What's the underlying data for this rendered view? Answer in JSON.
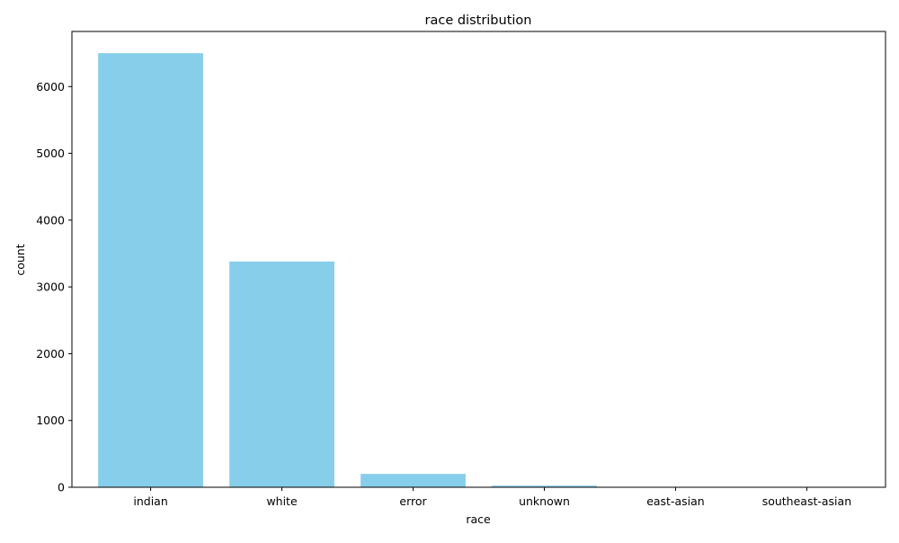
{
  "chart_data": {
    "type": "bar",
    "title": "race distribution",
    "xlabel": "race",
    "ylabel": "count",
    "categories": [
      "indian",
      "white",
      "error",
      "unknown",
      "east-asian",
      "southeast-asian"
    ],
    "values": [
      6500,
      3380,
      200,
      25,
      5,
      2
    ],
    "ylim": [
      0,
      6825
    ],
    "yticks": [
      0,
      1000,
      2000,
      3000,
      4000,
      5000,
      6000
    ],
    "bar_color": "#87ceeb",
    "grid": false,
    "legend": "none"
  }
}
